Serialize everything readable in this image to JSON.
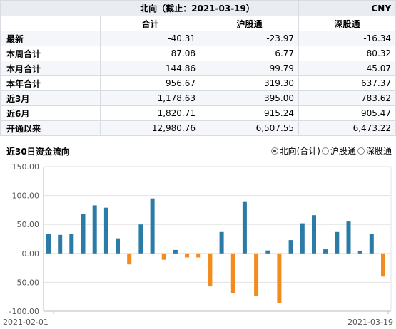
{
  "table": {
    "title": "北向（截止：2021-03-19）",
    "currency": "CNY",
    "columns": [
      "合计",
      "沪股通",
      "深股通"
    ],
    "rows": [
      {
        "label": "最新",
        "values": [
          "-40.31",
          "-23.97",
          "-16.34"
        ]
      },
      {
        "label": "本周合计",
        "values": [
          "87.08",
          "6.77",
          "80.32"
        ]
      },
      {
        "label": "本月合计",
        "values": [
          "144.86",
          "99.79",
          "45.07"
        ]
      },
      {
        "label": "本年合计",
        "values": [
          "956.67",
          "319.30",
          "637.37"
        ]
      },
      {
        "label": "近3月",
        "values": [
          "1,178.63",
          "395.00",
          "783.62"
        ]
      },
      {
        "label": "近6月",
        "values": [
          "1,820.71",
          "915.24",
          "905.47"
        ]
      },
      {
        "label": "开通以来",
        "values": [
          "12,980.76",
          "6,507.55",
          "6,473.22"
        ]
      }
    ]
  },
  "chart_header": {
    "title": "近30日资金流向",
    "options": [
      {
        "label": "北向(合计)",
        "selected": true
      },
      {
        "label": "沪股通",
        "selected": false
      },
      {
        "label": "深股通",
        "selected": false
      }
    ]
  },
  "chart_data": {
    "type": "bar",
    "xlabel": "",
    "ylabel": "",
    "ylim": [
      -100,
      150
    ],
    "yticks": [
      "150.00",
      "100.00",
      "50.00",
      "0.00",
      "-50.00",
      "-100.00"
    ],
    "x_start_label": "2021-02-01",
    "x_end_label": "2021-03-19",
    "grid": true,
    "positive_color": "#2a7ba6",
    "negative_color": "#f28c1e",
    "values": [
      34,
      32,
      34,
      68,
      83,
      79,
      26,
      -19,
      50,
      95,
      -11,
      6,
      -7,
      -7,
      -57,
      37,
      -69,
      90,
      -74,
      5,
      -86,
      23,
      52,
      66,
      7,
      37,
      55,
      4,
      33,
      -40
    ]
  }
}
